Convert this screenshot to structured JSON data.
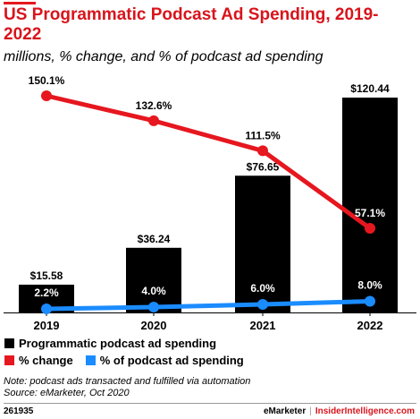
{
  "title": "US Programmatic Podcast Ad Spending, 2019-2022",
  "subtitle": "millions, % change, and % of podcast ad spending",
  "chart_data": {
    "type": "bar",
    "categories": [
      "2019",
      "2020",
      "2021",
      "2022"
    ],
    "series": [
      {
        "name": "Programmatic podcast ad spending",
        "type": "bar",
        "values": [
          15.58,
          36.24,
          76.65,
          120.44
        ],
        "labels": [
          "$15.58",
          "$36.24",
          "$76.65",
          "$120.44"
        ],
        "color": "#000000"
      },
      {
        "name": "% change",
        "type": "line",
        "values": [
          150.1,
          132.6,
          111.5,
          57.1
        ],
        "labels": [
          "150.1%",
          "132.6%",
          "111.5%",
          "57.1%"
        ],
        "color": "#e6171f"
      },
      {
        "name": "% of podcast ad spending",
        "type": "line",
        "values": [
          2.2,
          4.0,
          6.0,
          8.0
        ],
        "labels": [
          "2.2%",
          "4.0%",
          "6.0%",
          "8.0%"
        ],
        "color": "#1a8cff"
      }
    ],
    "grid": false,
    "legend_position": "bottom"
  },
  "legend": {
    "bars_label": "Programmatic podcast ad spending",
    "change_label": "% change",
    "share_label": "% of podcast ad spending"
  },
  "note": "Note: podcast ads transacted and fulfilled via automation",
  "source": "Source: eMarketer, Oct 2020",
  "footer": {
    "id": "261935",
    "brand": "eMarketer",
    "separator": "|",
    "site": "InsiderIntelligence.com"
  }
}
